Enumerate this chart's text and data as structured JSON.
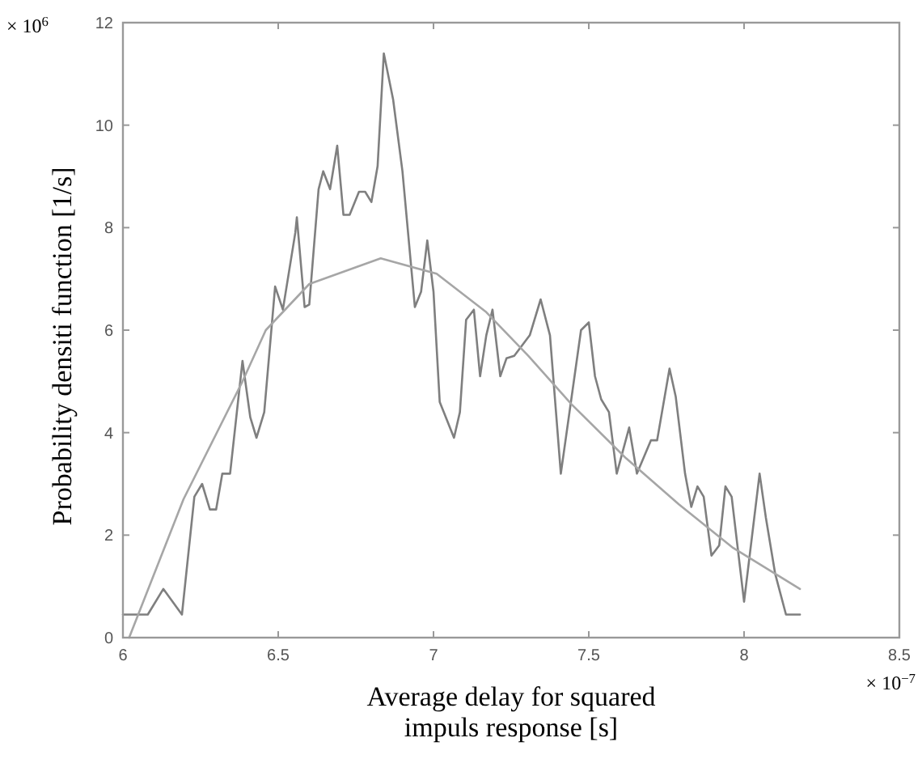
{
  "chart_data": {
    "type": "line",
    "xlabel": "Average delay for squared impuls response [s]",
    "ylabel": "Probability densiti function [1/s]",
    "annotations": [
      "× 10$^{6}$",
      "× 10$^{−7}$"
    ],
    "xlim": [
      6,
      8.5
    ],
    "xticks": [
      6,
      6.5,
      7,
      7.5,
      8,
      8.5
    ],
    "ylim": [
      0,
      12
    ],
    "yticks": [
      0,
      2,
      4,
      6,
      8,
      10,
      12
    ],
    "grid": false,
    "line_style": "solid",
    "marker": "none",
    "series": [
      {
        "color": "#7f7f7f",
        "x": [
          6.0,
          6.08,
          6.13,
          6.19,
          6.23,
          6.255,
          6.28,
          6.3,
          6.32,
          6.345,
          6.385,
          6.41,
          6.43,
          6.455,
          6.49,
          6.515,
          6.555,
          6.56,
          6.585,
          6.6,
          6.63,
          6.645,
          6.667,
          6.69,
          6.71,
          6.73,
          6.76,
          6.78,
          6.8,
          6.82,
          6.84,
          6.87,
          6.9,
          6.94,
          6.96,
          6.98,
          7.0,
          7.02,
          7.066,
          7.085,
          7.105,
          7.13,
          7.15,
          7.17,
          7.19,
          7.215,
          7.235,
          7.26,
          7.285,
          7.31,
          7.345,
          7.375,
          7.41,
          7.475,
          7.5,
          7.52,
          7.54,
          7.565,
          7.59,
          7.63,
          7.655,
          7.7,
          7.72,
          7.76,
          7.78,
          7.81,
          7.83,
          7.85,
          7.87,
          7.895,
          7.92,
          7.94,
          7.96,
          8.0,
          8.05,
          8.07,
          8.1,
          8.135,
          8.18
        ],
        "values": [
          0.45,
          0.45,
          0.95,
          0.45,
          2.75,
          3.0,
          2.5,
          2.5,
          3.2,
          3.2,
          5.4,
          4.3,
          3.9,
          4.4,
          6.85,
          6.4,
          7.9,
          8.2,
          6.45,
          6.5,
          8.75,
          9.1,
          8.75,
          9.6,
          8.25,
          8.25,
          8.7,
          8.7,
          8.5,
          9.2,
          11.4,
          10.5,
          9.1,
          6.45,
          6.75,
          7.75,
          6.75,
          4.6,
          3.9,
          4.4,
          6.2,
          6.4,
          5.1,
          5.9,
          6.4,
          5.1,
          5.45,
          5.5,
          5.7,
          5.9,
          6.6,
          5.9,
          3.2,
          6.0,
          6.15,
          5.1,
          4.65,
          4.4,
          3.2,
          4.1,
          3.2,
          3.85,
          3.85,
          5.25,
          4.7,
          3.2,
          2.55,
          2.95,
          2.75,
          1.6,
          1.8,
          2.95,
          2.75,
          0.7,
          3.2,
          2.35,
          1.25,
          0.45,
          0.45
        ]
      },
      {
        "type": "line",
        "color": "#a6a6a6",
        "x": [
          6.02,
          6.195,
          6.385,
          6.46,
          6.6,
          6.83,
          7.01,
          7.17,
          7.305,
          7.445,
          7.62,
          7.79,
          7.965,
          8.18
        ],
        "values": [
          0.0,
          2.7,
          5.0,
          6.0,
          6.9,
          7.4,
          7.1,
          6.35,
          5.5,
          4.55,
          3.5,
          2.6,
          1.75,
          0.95
        ]
      }
    ]
  }
}
